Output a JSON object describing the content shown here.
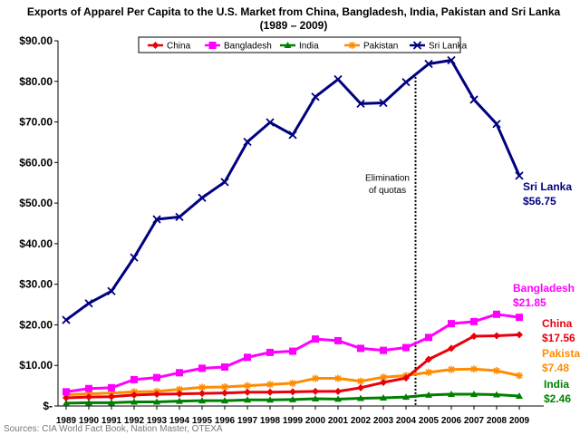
{
  "chart_data": {
    "type": "line",
    "title_line1": "Exports of Apparel Per Capita to the U.S. Market from China, Bangladesh, India, Pakistan and Sri Lanka",
    "title_line2": "(1989 – 2009)",
    "xlabel": "",
    "ylabel": "",
    "ylim": [
      0,
      90
    ],
    "y_ticks": [
      {
        "value": 0,
        "label": "$-"
      },
      {
        "value": 10,
        "label": "$10.00"
      },
      {
        "value": 20,
        "label": "$20.00"
      },
      {
        "value": 30,
        "label": "$30.00"
      },
      {
        "value": 40,
        "label": "$40.00"
      },
      {
        "value": 50,
        "label": "$50.00"
      },
      {
        "value": 60,
        "label": "$60.00"
      },
      {
        "value": 70,
        "label": "$70.00"
      },
      {
        "value": 80,
        "label": "$80.00"
      },
      {
        "value": 90,
        "label": "$90.00"
      }
    ],
    "grid": false,
    "legend_position": "top-center",
    "x": [
      "1989",
      "1990",
      "1991",
      "1992",
      "1993",
      "1994",
      "1995",
      "1996",
      "1997",
      "1998",
      "1999",
      "2000",
      "2001",
      "2002",
      "2003",
      "2004",
      "2005",
      "2006",
      "2007",
      "2008",
      "2009"
    ],
    "series": [
      {
        "name": "China",
        "color": "#e8000b",
        "marker": "diamond",
        "values": [
          2.0,
          2.2,
          2.3,
          2.7,
          2.9,
          3.0,
          3.1,
          3.2,
          3.4,
          3.4,
          3.5,
          3.6,
          3.6,
          4.5,
          5.8,
          6.9,
          11.5,
          14.2,
          17.2,
          17.3,
          17.56
        ]
      },
      {
        "name": "Bangladesh",
        "color": "#ff00ff",
        "marker": "square",
        "values": [
          3.5,
          4.3,
          4.5,
          6.5,
          7.0,
          8.2,
          9.3,
          9.6,
          12.0,
          13.2,
          13.5,
          16.5,
          16.1,
          14.2,
          13.7,
          14.4,
          16.9,
          20.3,
          20.8,
          22.6,
          21.85
        ]
      },
      {
        "name": "India",
        "color": "#008000",
        "marker": "triangle",
        "values": [
          0.7,
          0.8,
          0.8,
          1.0,
          1.0,
          1.2,
          1.3,
          1.3,
          1.5,
          1.5,
          1.6,
          1.8,
          1.7,
          1.9,
          2.0,
          2.2,
          2.7,
          2.9,
          2.9,
          2.8,
          2.46
        ]
      },
      {
        "name": "Pakistan",
        "color": "#ff8c00",
        "marker": "star",
        "values": [
          2.8,
          3.0,
          3.2,
          3.5,
          3.6,
          4.1,
          4.6,
          4.7,
          5.0,
          5.3,
          5.6,
          6.8,
          6.8,
          6.1,
          7.1,
          7.5,
          8.3,
          9.0,
          9.1,
          8.7,
          7.48
        ]
      },
      {
        "name": "Sri Lanka",
        "color": "#000080",
        "marker": "x",
        "values": [
          21.2,
          25.3,
          28.3,
          36.6,
          46.0,
          46.6,
          51.3,
          55.2,
          65.1,
          69.9,
          66.8,
          76.2,
          80.5,
          74.5,
          74.7,
          79.8,
          84.3,
          85.2,
          75.5,
          69.5,
          56.75
        ]
      }
    ],
    "end_labels": [
      {
        "series": "Sri Lanka",
        "name": "Sri Lanka",
        "value": "$56.75"
      },
      {
        "series": "Bangladesh",
        "name": "Bangladesh",
        "value": "$21.85"
      },
      {
        "series": "China",
        "name": "China",
        "value": "$17.56"
      },
      {
        "series": "Pakistan",
        "name": "Pakistan",
        "value": "$7.48"
      },
      {
        "series": "India",
        "name": "India",
        "value": "$2.46"
      }
    ],
    "annotation": {
      "line1": "Elimination",
      "line2": "of quotas",
      "at_x": "2004"
    },
    "source": "Sources: CIA World Fact Book, Nation Master, OTEXA"
  }
}
